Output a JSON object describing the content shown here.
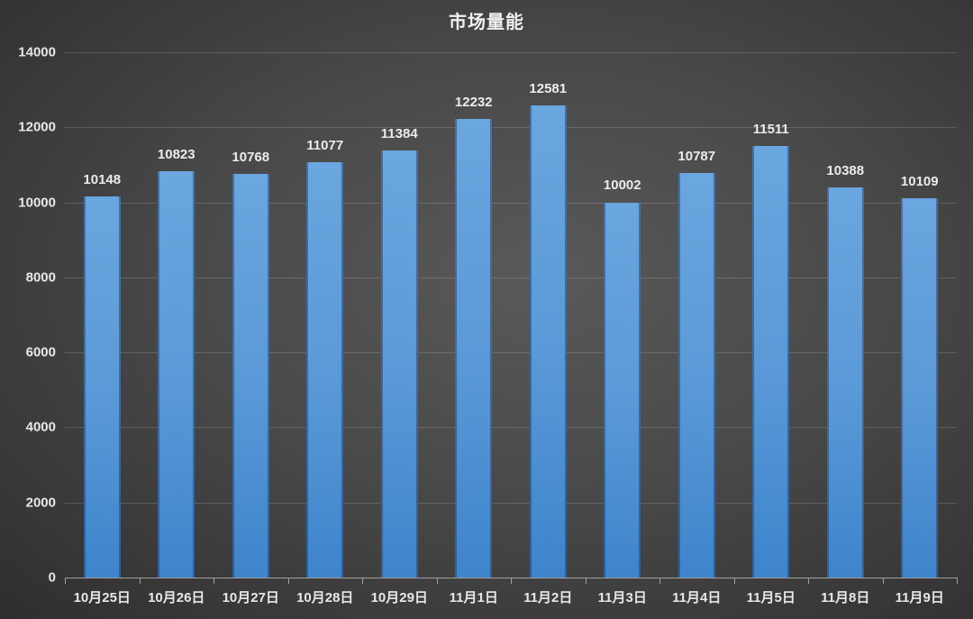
{
  "chart_data": {
    "type": "bar",
    "title": "市场量能",
    "xlabel": "",
    "ylabel": "",
    "ylim": [
      0,
      14000
    ],
    "yticks": [
      0,
      2000,
      4000,
      6000,
      8000,
      10000,
      12000,
      14000
    ],
    "grid": true,
    "legend": null,
    "categories": [
      "10月25日",
      "10月26日",
      "10月27日",
      "10月28日",
      "10月29日",
      "11月1日",
      "11月2日",
      "11月3日",
      "11月4日",
      "11月5日",
      "11月8日",
      "11月9日"
    ],
    "values": [
      10148,
      10823,
      10768,
      11077,
      11384,
      12232,
      12581,
      10002,
      10787,
      11511,
      10388,
      10109
    ],
    "data_labels": true,
    "colors": {
      "bar": "#5b9bd5",
      "background": "#4a4949",
      "text": "#e8e8e8"
    }
  }
}
